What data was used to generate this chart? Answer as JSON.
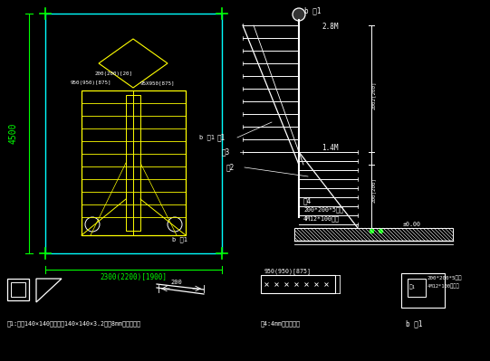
{
  "bg_color": "#000000",
  "line_color_white": "#ffffff",
  "line_color_cyan": "#00ffff",
  "line_color_yellow": "#ffff00",
  "line_color_green": "#00ff00",
  "figsize": [
    5.41,
    3.99
  ],
  "dpi": 100,
  "texts": {
    "b_point1_top": "b 点1",
    "dim_28m": "2.8M",
    "dim_14m": "1.4M",
    "part1_label": "件1",
    "part3_label": "件3",
    "part2_label": "件2",
    "part4_label": "件4",
    "dim_200x200": "200*200*5著板",
    "bolt_label": "4M12*100螺栓",
    "elev_000": "±0.00",
    "dim_4500": "4500",
    "dim_2300": "2300(2200)[1900]",
    "b_point_main": "b 点1",
    "b_point_bottom": "b 点1",
    "dim_950": "950(950)[875]",
    "part1_desc": "件1:方管140×140粒定苏管140×140×3.2俯板8mm厚著板制作",
    "part4_desc": "件4:4mm厚著板制作",
    "b_point_detail": "b 点1",
    "dim_200_arrow": "200",
    "plan_dim_top": "200(200)[20]",
    "plan_dim_left": "950(950)[875]",
    "plan_dim_right": "95X950[875]"
  }
}
